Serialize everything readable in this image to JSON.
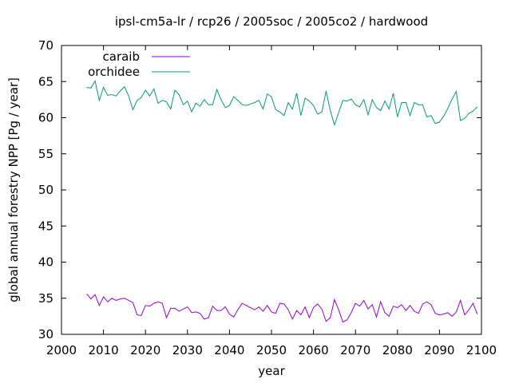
{
  "chart_data": {
    "type": "line",
    "title": "ipsl-cm5a-lr / rcp26 / 2005soc / 2005co2 / hardwood",
    "xlabel": "year",
    "ylabel": "global annual forestry NPP [Pg / year]",
    "xlim": [
      2000,
      2100
    ],
    "ylim": [
      30,
      70
    ],
    "xticks": [
      2000,
      2010,
      2020,
      2030,
      2040,
      2050,
      2060,
      2070,
      2080,
      2090,
      2100
    ],
    "yticks": [
      30,
      35,
      40,
      45,
      50,
      55,
      60,
      65,
      70
    ],
    "grid": false,
    "legend_position": "top-left",
    "x": [
      2006,
      2007,
      2008,
      2009,
      2010,
      2011,
      2012,
      2013,
      2014,
      2015,
      2016,
      2017,
      2018,
      2019,
      2020,
      2021,
      2022,
      2023,
      2024,
      2025,
      2026,
      2027,
      2028,
      2029,
      2030,
      2031,
      2032,
      2033,
      2034,
      2035,
      2036,
      2037,
      2038,
      2039,
      2040,
      2041,
      2042,
      2043,
      2044,
      2045,
      2046,
      2047,
      2048,
      2049,
      2050,
      2051,
      2052,
      2053,
      2054,
      2055,
      2056,
      2057,
      2058,
      2059,
      2060,
      2061,
      2062,
      2063,
      2064,
      2065,
      2066,
      2067,
      2068,
      2069,
      2070,
      2071,
      2072,
      2073,
      2074,
      2075,
      2076,
      2077,
      2078,
      2079,
      2080,
      2081,
      2082,
      2083,
      2084,
      2085,
      2086,
      2087,
      2088,
      2089,
      2090,
      2091,
      2092,
      2093,
      2094,
      2095,
      2096,
      2097,
      2098,
      2099
    ],
    "series": [
      {
        "name": "caraib",
        "color": "#9400d3",
        "values": [
          35.6,
          34.9,
          35.5,
          34.0,
          35.2,
          34.5,
          35.0,
          34.7,
          34.9,
          35.0,
          34.7,
          34.4,
          32.7,
          32.6,
          34.0,
          33.9,
          34.3,
          34.5,
          34.3,
          32.3,
          33.6,
          33.6,
          33.2,
          33.5,
          33.8,
          33.0,
          33.1,
          32.9,
          32.1,
          32.3,
          33.9,
          33.3,
          33.3,
          33.8,
          32.8,
          32.4,
          33.4,
          34.3,
          34.0,
          33.7,
          33.4,
          33.8,
          33.2,
          34.0,
          33.1,
          32.9,
          34.3,
          34.2,
          33.4,
          32.1,
          33.3,
          32.7,
          33.8,
          32.3,
          33.7,
          34.2,
          33.5,
          31.8,
          32.3,
          34.8,
          33.4,
          31.7,
          32.0,
          33.0,
          34.3,
          33.9,
          34.7,
          33.5,
          34.1,
          32.4,
          34.5,
          33.0,
          32.5,
          33.9,
          33.7,
          34.1,
          33.3,
          34.0,
          33.2,
          32.9,
          34.2,
          34.5,
          34.1,
          32.9,
          32.7,
          32.8,
          33.0,
          32.5,
          33.1,
          34.7,
          32.7,
          33.4,
          34.3,
          32.8
        ]
      },
      {
        "name": "orchidee",
        "color": "#009e73",
        "values": [
          64.2,
          64.1,
          65.1,
          62.4,
          64.2,
          63.1,
          63.2,
          63.0,
          63.7,
          64.3,
          63.0,
          61.1,
          62.4,
          62.8,
          63.8,
          63.0,
          64.0,
          62.0,
          62.4,
          62.2,
          61.2,
          63.8,
          63.2,
          61.8,
          62.3,
          60.8,
          62.0,
          61.6,
          62.5,
          61.8,
          61.8,
          63.9,
          62.5,
          61.4,
          61.7,
          62.9,
          62.4,
          61.8,
          61.7,
          61.9,
          62.1,
          62.4,
          61.2,
          63.3,
          62.9,
          61.1,
          60.8,
          60.3,
          62.1,
          61.2,
          63.4,
          60.3,
          62.7,
          62.3,
          61.7,
          60.5,
          60.8,
          63.7,
          61.0,
          59.0,
          60.7,
          62.4,
          62.3,
          62.6,
          61.8,
          61.5,
          62.5,
          60.4,
          62.5,
          61.4,
          61.0,
          62.3,
          61.2,
          63.4,
          60.1,
          62.1,
          62.1,
          60.3,
          62.1,
          61.8,
          61.8,
          60.1,
          60.3,
          59.2,
          59.4,
          60.2,
          61.3,
          62.6,
          63.6,
          59.6,
          59.9,
          60.6,
          60.9,
          61.5
        ]
      }
    ]
  }
}
